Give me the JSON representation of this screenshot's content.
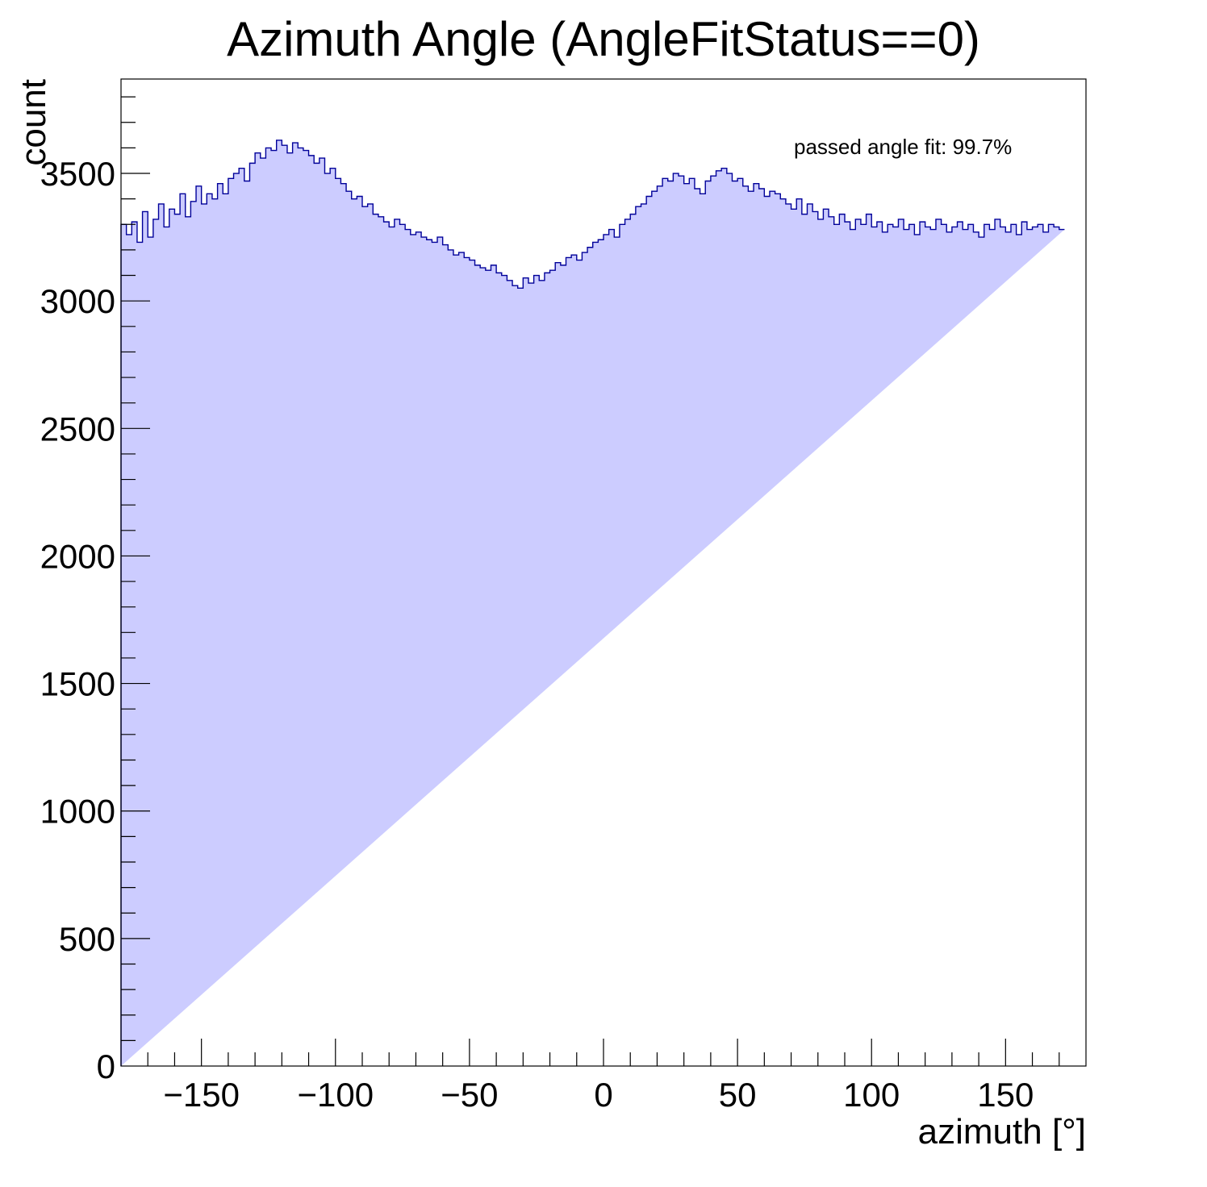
{
  "chart_data": {
    "type": "histogram",
    "title": "Azimuth Angle (AngleFitStatus==0)",
    "xlabel": "azimuth [°]",
    "ylabel": "count",
    "xlim": [
      -180,
      180
    ],
    "ylim": [
      0,
      3870
    ],
    "xticks": [
      -150,
      -100,
      -50,
      0,
      50,
      100,
      150
    ],
    "xtick_labels": [
      "−150",
      "−100",
      "−50",
      "0",
      "50",
      "100",
      "150"
    ],
    "yticks": [
      0,
      500,
      1000,
      1500,
      2000,
      2500,
      3000,
      3500
    ],
    "ytick_labels": [
      "0",
      "500",
      "1000",
      "1500",
      "2000",
      "2500",
      "3000",
      "3500"
    ],
    "annotation": "passed angle fit: 99.7%",
    "grid": false,
    "fill_color": "#ccccff",
    "line_color": "#000099",
    "bin_width_deg": 2,
    "bin_centers": [
      -179,
      -177,
      -175,
      -173,
      -171,
      -169,
      -167,
      -165,
      -163,
      -161,
      -159,
      -157,
      -155,
      -153,
      -151,
      -149,
      -147,
      -145,
      -143,
      -141,
      -139,
      -137,
      -135,
      -133,
      -131,
      -129,
      -127,
      -125,
      -123,
      -121,
      -119,
      -117,
      -115,
      -113,
      -111,
      -109,
      -107,
      -105,
      -103,
      -101,
      -99,
      -97,
      -95,
      -93,
      -91,
      -89,
      -87,
      -85,
      -83,
      -81,
      -79,
      -77,
      -75,
      -73,
      -71,
      -69,
      -67,
      -65,
      -63,
      -61,
      -59,
      -57,
      -55,
      -53,
      -51,
      -49,
      -47,
      -45,
      -43,
      -41,
      -39,
      -37,
      -35,
      -33,
      -31,
      -29,
      -27,
      -25,
      -23,
      -21,
      -19,
      -17,
      -15,
      -13,
      -11,
      -9,
      -7,
      -5,
      -3,
      -1,
      1,
      3,
      5,
      7,
      9,
      11,
      13,
      15,
      17,
      19,
      21,
      23,
      25,
      27,
      29,
      31,
      33,
      35,
      37,
      39,
      41,
      43,
      45,
      47,
      49,
      51,
      53,
      55,
      57,
      59,
      61,
      63,
      65,
      67,
      69,
      71,
      73,
      75,
      77,
      79,
      81,
      83,
      85,
      87,
      89,
      91,
      93,
      95,
      97,
      99,
      101,
      103,
      105,
      107,
      109,
      111,
      113,
      115,
      117,
      119,
      121,
      123,
      125,
      127,
      129,
      131,
      133,
      135,
      137,
      139,
      141,
      143,
      145,
      147,
      149,
      151,
      153,
      155,
      157,
      159,
      161,
      163,
      165,
      167,
      169,
      171,
      173,
      175,
      177,
      179
    ],
    "counts": [
      3300,
      3260,
      3310,
      3230,
      3350,
      3250,
      3320,
      3380,
      3290,
      3360,
      3340,
      3420,
      3330,
      3390,
      3450,
      3380,
      3420,
      3400,
      3460,
      3420,
      3480,
      3500,
      3520,
      3470,
      3540,
      3580,
      3560,
      3600,
      3590,
      3630,
      3610,
      3580,
      3620,
      3600,
      3590,
      3570,
      3540,
      3560,
      3500,
      3520,
      3480,
      3460,
      3430,
      3400,
      3410,
      3370,
      3380,
      3340,
      3330,
      3310,
      3290,
      3320,
      3300,
      3280,
      3260,
      3270,
      3250,
      3240,
      3230,
      3250,
      3220,
      3200,
      3180,
      3190,
      3170,
      3160,
      3140,
      3130,
      3120,
      3140,
      3110,
      3100,
      3080,
      3060,
      3050,
      3090,
      3070,
      3100,
      3080,
      3110,
      3120,
      3150,
      3140,
      3170,
      3180,
      3160,
      3190,
      3210,
      3230,
      3240,
      3260,
      3280,
      3250,
      3300,
      3320,
      3340,
      3370,
      3380,
      3410,
      3430,
      3450,
      3480,
      3470,
      3500,
      3490,
      3460,
      3480,
      3440,
      3420,
      3470,
      3490,
      3510,
      3520,
      3500,
      3470,
      3480,
      3450,
      3430,
      3460,
      3440,
      3410,
      3430,
      3420,
      3400,
      3380,
      3360,
      3400,
      3340,
      3380,
      3350,
      3320,
      3360,
      3330,
      3300,
      3340,
      3310,
      3280,
      3320,
      3300,
      3340,
      3290,
      3310,
      3270,
      3300,
      3290,
      3320,
      3280,
      3300,
      3260,
      3310,
      3290,
      3280,
      3320,
      3300,
      3270,
      3290,
      3310,
      3280,
      3300,
      3270,
      3250,
      3300,
      3280,
      3320,
      3290,
      3270,
      3300,
      3260,
      3310,
      3280,
      3290,
      3300,
      3270,
      3300,
      3290,
      3280
    ]
  }
}
